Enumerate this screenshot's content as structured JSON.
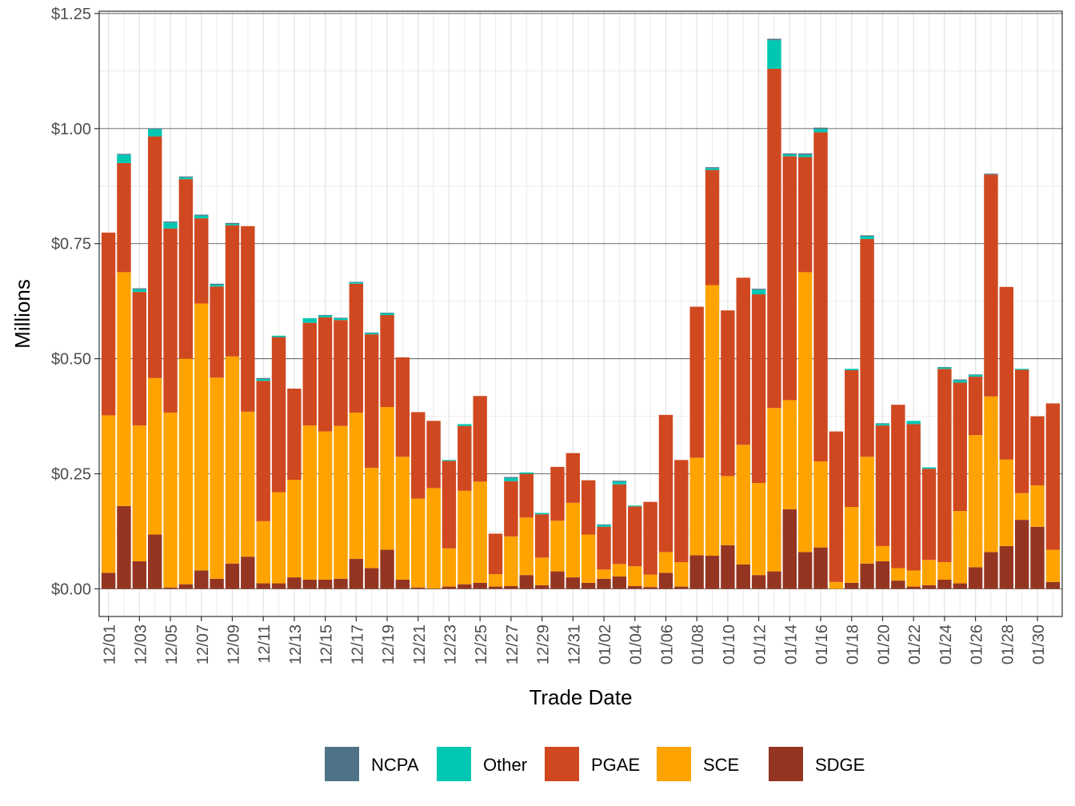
{
  "chart_data": {
    "type": "bar",
    "stacked": true,
    "xlabel": "Trade Date",
    "ylabel": "Millions",
    "ylim": [
      -0.06,
      1.255
    ],
    "y_ticks": [
      0,
      0.25,
      0.5,
      0.75,
      1.0,
      1.25
    ],
    "y_tick_labels": [
      "$0.00",
      "$0.25",
      "$0.50",
      "$0.75",
      "$1.00",
      "$1.25"
    ],
    "grid": true,
    "legend_position": "bottom",
    "categories": [
      "12/01",
      "12/02",
      "12/03",
      "12/04",
      "12/05",
      "12/06",
      "12/07",
      "12/08",
      "12/09",
      "12/10",
      "12/11",
      "12/12",
      "12/13",
      "12/14",
      "12/15",
      "12/16",
      "12/17",
      "12/18",
      "12/19",
      "12/20",
      "12/21",
      "12/22",
      "12/23",
      "12/24",
      "12/25",
      "12/26",
      "12/27",
      "12/28",
      "12/29",
      "12/30",
      "12/31",
      "01/01",
      "01/02",
      "01/03",
      "01/04",
      "01/05",
      "01/06",
      "01/07",
      "01/08",
      "01/09",
      "01/10",
      "01/11",
      "01/12",
      "01/13",
      "01/14",
      "01/15",
      "01/16",
      "01/17",
      "01/18",
      "01/19",
      "01/20",
      "01/21",
      "01/22",
      "01/23",
      "01/24",
      "01/25",
      "01/26",
      "01/27",
      "01/28",
      "01/29",
      "01/30",
      "01/31"
    ],
    "tick_labels": [
      "12/01",
      "12/03",
      "12/05",
      "12/07",
      "12/09",
      "12/11",
      "12/13",
      "12/15",
      "12/17",
      "12/19",
      "12/21",
      "12/23",
      "12/25",
      "12/27",
      "12/29",
      "12/31",
      "01/02",
      "01/04",
      "01/06",
      "01/08",
      "01/10",
      "01/12",
      "01/14",
      "01/16",
      "01/18",
      "01/20",
      "01/22",
      "01/24",
      "01/26",
      "01/28",
      "01/30"
    ],
    "series": [
      {
        "name": "SDGE",
        "color": "#943522",
        "values": [
          0.035,
          0.18,
          0.06,
          0.118,
          0.003,
          0.01,
          0.04,
          0.022,
          0.055,
          0.07,
          0.012,
          0.012,
          0.025,
          0.02,
          0.02,
          0.022,
          0.065,
          0.045,
          0.085,
          0.02,
          0.003,
          0.001,
          0.005,
          0.01,
          0.013,
          0.005,
          0.006,
          0.03,
          0.008,
          0.038,
          0.025,
          0.013,
          0.022,
          0.027,
          0.006,
          0.004,
          0.035,
          0.005,
          0.073,
          0.072,
          0.095,
          0.053,
          0.03,
          0.038,
          0.173,
          0.08,
          0.09,
          0.0,
          0.013,
          0.055,
          0.06,
          0.018,
          0.005,
          0.008,
          0.02,
          0.012,
          0.047,
          0.08,
          0.093,
          0.15,
          0.135,
          0.015
        ]
      },
      {
        "name": "SCE",
        "color": "#FFA300",
        "values": [
          0.342,
          0.508,
          0.295,
          0.34,
          0.38,
          0.49,
          0.58,
          0.437,
          0.45,
          0.315,
          0.135,
          0.198,
          0.212,
          0.335,
          0.322,
          0.332,
          0.318,
          0.218,
          0.31,
          0.267,
          0.193,
          0.218,
          0.083,
          0.203,
          0.22,
          0.027,
          0.108,
          0.125,
          0.06,
          0.11,
          0.162,
          0.105,
          0.02,
          0.027,
          0.043,
          0.027,
          0.045,
          0.053,
          0.212,
          0.588,
          0.15,
          0.26,
          0.2,
          0.355,
          0.237,
          0.608,
          0.187,
          0.015,
          0.165,
          0.232,
          0.033,
          0.027,
          0.035,
          0.055,
          0.038,
          0.157,
          0.287,
          0.338,
          0.188,
          0.058,
          0.09,
          0.07
        ]
      },
      {
        "name": "PGAE",
        "color": "#D04820",
        "values": [
          0.397,
          0.237,
          0.29,
          0.525,
          0.4,
          0.39,
          0.185,
          0.198,
          0.285,
          0.403,
          0.305,
          0.337,
          0.198,
          0.223,
          0.248,
          0.23,
          0.28,
          0.29,
          0.2,
          0.216,
          0.188,
          0.146,
          0.19,
          0.141,
          0.186,
          0.088,
          0.12,
          0.095,
          0.094,
          0.117,
          0.108,
          0.118,
          0.093,
          0.173,
          0.13,
          0.158,
          0.298,
          0.222,
          0.328,
          0.25,
          0.36,
          0.363,
          0.41,
          0.737,
          0.53,
          0.25,
          0.715,
          0.327,
          0.297,
          0.473,
          0.262,
          0.355,
          0.318,
          0.198,
          0.42,
          0.279,
          0.127,
          0.482,
          0.375,
          0.268,
          0.15,
          0.318
        ]
      },
      {
        "name": "Other",
        "color": "#00C7B2",
        "values": [
          0.0,
          0.018,
          0.006,
          0.016,
          0.013,
          0.004,
          0.006,
          0.004,
          0.003,
          0.0,
          0.004,
          0.003,
          0.0,
          0.01,
          0.004,
          0.004,
          0.003,
          0.003,
          0.004,
          0.0,
          0.0,
          0.0,
          0.002,
          0.004,
          0.0,
          0.0,
          0.007,
          0.003,
          0.003,
          0.0,
          0.0,
          0.0,
          0.004,
          0.006,
          0.002,
          0.0,
          0.0,
          0.0,
          0.0,
          0.004,
          0.0,
          0.0,
          0.01,
          0.062,
          0.004,
          0.005,
          0.007,
          0.0,
          0.003,
          0.006,
          0.004,
          0.0,
          0.007,
          0.003,
          0.003,
          0.005,
          0.004,
          0.0,
          0.0,
          0.002,
          0.0,
          0.0
        ]
      },
      {
        "name": "NCPA",
        "color": "#4E7387",
        "values": [
          0.0,
          0.002,
          0.002,
          0.001,
          0.002,
          0.002,
          0.002,
          0.002,
          0.002,
          0.0,
          0.002,
          0.0,
          0.0,
          0.0,
          0.001,
          0.001,
          0.001,
          0.001,
          0.001,
          0.0,
          0.0,
          0.0,
          0.0,
          0.0,
          0.0,
          0.0,
          0.002,
          0.0,
          0.0,
          0.0,
          0.0,
          0.0,
          0.001,
          0.002,
          0.0,
          0.0,
          0.0,
          0.0,
          0.0,
          0.002,
          0.0,
          0.0,
          0.002,
          0.003,
          0.002,
          0.003,
          0.003,
          0.0,
          0.0,
          0.002,
          0.001,
          0.0,
          0.0,
          0.0,
          0.001,
          0.002,
          0.001,
          0.002,
          0.0,
          0.0,
          0.0,
          0.0
        ]
      }
    ],
    "legend": [
      "NCPA",
      "Other",
      "PGAE",
      "SCE",
      "SDGE"
    ]
  }
}
